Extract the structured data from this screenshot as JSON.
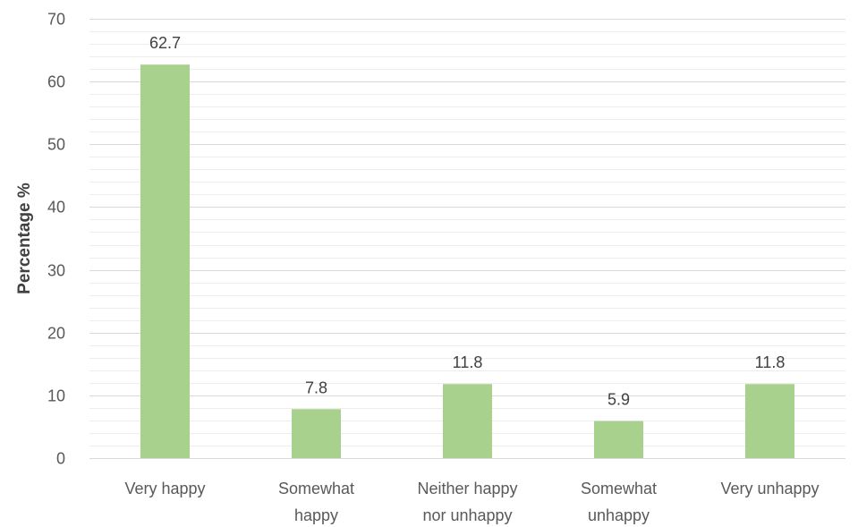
{
  "chart_data": {
    "type": "bar",
    "title": "",
    "xlabel": "",
    "ylabel": "Percentage %",
    "ylim": [
      0,
      70
    ],
    "yticks": [
      0,
      10,
      20,
      30,
      40,
      50,
      60,
      70
    ],
    "grid": true,
    "minor_grid": true,
    "legend": "none",
    "categories": [
      [
        "Very happy"
      ],
      [
        "Somewhat",
        "happy"
      ],
      [
        "Neither happy",
        "nor unhappy"
      ],
      [
        "Somewhat",
        "unhappy"
      ],
      [
        "Very unhappy"
      ]
    ],
    "values": [
      62.7,
      7.8,
      11.8,
      5.9,
      11.8
    ],
    "data_labels": [
      "62.7",
      "7.8",
      "11.8",
      "5.9",
      "11.8"
    ],
    "colors": {
      "bar": "#a9d18e",
      "gridline": "#d9d9d9",
      "minor_gridline": "#ededed",
      "axis": "#d9d9d9",
      "text": "#595959"
    }
  }
}
